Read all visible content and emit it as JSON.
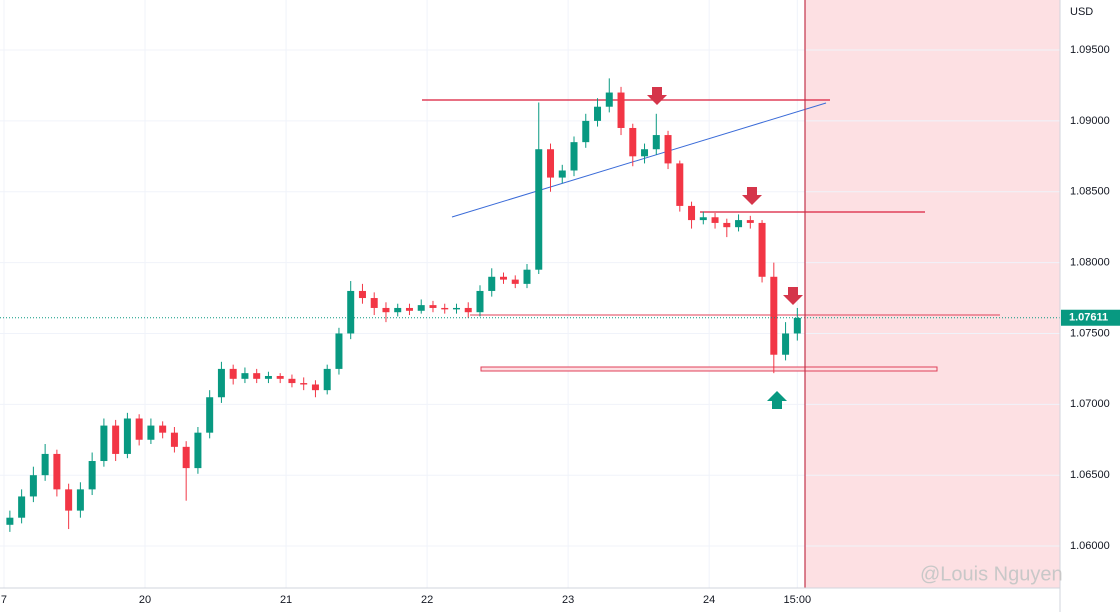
{
  "chart_data": {
    "type": "candlestick",
    "currency": "USD",
    "watermark": "@Louis Nguyen",
    "last_price": 1.07611,
    "up_color": "#089981",
    "down_color": "#f23645",
    "grid": true,
    "xlim": [
      -0.68,
      179.7
    ],
    "ylim": [
      1.05704,
      1.09853
    ],
    "xticks": [
      {
        "value": 0,
        "label": "7"
      },
      {
        "value": 24,
        "label": "20"
      },
      {
        "value": 48,
        "label": "21"
      },
      {
        "value": 72,
        "label": "22"
      },
      {
        "value": 96,
        "label": "23"
      },
      {
        "value": 120,
        "label": "24"
      },
      {
        "value": 135,
        "label": "15:00"
      }
    ],
    "yticks": [
      {
        "value": 1.06,
        "label": "1.06000"
      },
      {
        "value": 1.065,
        "label": "1.06500"
      },
      {
        "value": 1.07,
        "label": "1.07000"
      },
      {
        "value": 1.075,
        "label": "1.07500"
      },
      {
        "value": 1.08,
        "label": "1.08000"
      },
      {
        "value": 1.085,
        "label": "1.08500"
      },
      {
        "value": 1.09,
        "label": "1.09000"
      },
      {
        "value": 1.095,
        "label": "1.09500"
      }
    ],
    "x": [
      1,
      3,
      5,
      7,
      9,
      11,
      13,
      15,
      17,
      19,
      21,
      23,
      25,
      27,
      29,
      31,
      33,
      35,
      37,
      39,
      41,
      43,
      45,
      47,
      49,
      51,
      53,
      55,
      57,
      59,
      61,
      63,
      65,
      67,
      69,
      71,
      73,
      75,
      77,
      79,
      81,
      83,
      85,
      87,
      89,
      91,
      93,
      95,
      97,
      99,
      101,
      103,
      105,
      107,
      109,
      111,
      113,
      115,
      117,
      119,
      121,
      123,
      125,
      127,
      129,
      131,
      133,
      135
    ],
    "open": [
      1.0615,
      1.062,
      1.0635,
      1.065,
      1.0665,
      1.064,
      1.0625,
      1.064,
      1.066,
      1.0685,
      1.0665,
      1.069,
      1.0675,
      1.0685,
      1.068,
      1.067,
      1.0655,
      1.068,
      1.0705,
      1.0725,
      1.0718,
      1.0722,
      1.0718,
      1.072,
      1.0718,
      1.0715,
      1.0714,
      1.071,
      1.0725,
      1.075,
      1.078,
      1.0775,
      1.0768,
      1.0765,
      1.0768,
      1.0766,
      1.077,
      1.0768,
      1.0767,
      1.0768,
      1.0765,
      1.078,
      1.079,
      1.0788,
      1.0785,
      1.0795,
      1.088,
      1.086,
      1.0865,
      1.0885,
      1.09,
      1.091,
      1.092,
      1.0895,
      1.0875,
      1.088,
      1.089,
      1.087,
      1.084,
      1.083,
      1.0832,
      1.0828,
      1.0825,
      1.083,
      1.0828,
      1.079,
      1.0735,
      1.075
    ],
    "high": [
      1.0625,
      1.064,
      1.0656,
      1.0672,
      1.0668,
      1.0644,
      1.0645,
      1.0666,
      1.069,
      1.0689,
      1.0694,
      1.0693,
      1.069,
      1.0688,
      1.0684,
      1.0674,
      1.0684,
      1.071,
      1.073,
      1.0728,
      1.0726,
      1.0725,
      1.0723,
      1.0722,
      1.0721,
      1.0719,
      1.0717,
      1.0728,
      1.0754,
      1.0787,
      1.0785,
      1.0779,
      1.0772,
      1.0771,
      1.0771,
      1.0774,
      1.0773,
      1.0771,
      1.0771,
      1.0772,
      1.0784,
      1.0796,
      1.0793,
      1.0791,
      1.0799,
      1.0913,
      1.0884,
      1.0869,
      1.0889,
      1.0905,
      1.0916,
      1.093,
      1.0924,
      1.0898,
      1.0884,
      1.0905,
      1.0893,
      1.0872,
      1.0843,
      1.0836,
      1.0835,
      1.0831,
      1.0834,
      1.0833,
      1.083,
      1.08,
      1.0758,
      1.0768
    ],
    "low": [
      1.061,
      1.0616,
      1.0631,
      1.0646,
      1.0635,
      1.0612,
      1.062,
      1.0636,
      1.0656,
      1.066,
      1.0662,
      1.0671,
      1.0672,
      1.0676,
      1.0666,
      1.0632,
      1.0651,
      1.0676,
      1.0701,
      1.0714,
      1.0715,
      1.0715,
      1.0715,
      1.0715,
      1.0712,
      1.071,
      1.0705,
      1.0707,
      1.0721,
      1.0746,
      1.0771,
      1.0763,
      1.0758,
      1.0762,
      1.0763,
      1.0764,
      1.0765,
      1.0764,
      1.0764,
      1.0761,
      1.0762,
      1.0776,
      1.0785,
      1.0782,
      1.0782,
      1.0792,
      1.085,
      1.0856,
      1.0861,
      1.0881,
      1.0896,
      1.0906,
      1.089,
      1.0868,
      1.087,
      1.0876,
      1.0866,
      1.0836,
      1.0824,
      1.0827,
      1.0824,
      1.0818,
      1.0822,
      1.0824,
      1.0786,
      1.0722,
      1.0731,
      1.0745
    ],
    "close": [
      1.062,
      1.0635,
      1.065,
      1.0665,
      1.064,
      1.0625,
      1.064,
      1.066,
      1.0685,
      1.0665,
      1.069,
      1.0675,
      1.0685,
      1.068,
      1.067,
      1.0655,
      1.068,
      1.0705,
      1.0725,
      1.0718,
      1.0722,
      1.0718,
      1.072,
      1.0718,
      1.0715,
      1.0714,
      1.071,
      1.0725,
      1.075,
      1.078,
      1.0775,
      1.0768,
      1.0765,
      1.0768,
      1.0766,
      1.077,
      1.0768,
      1.0767,
      1.0768,
      1.0765,
      1.078,
      1.079,
      1.0788,
      1.0785,
      1.0795,
      1.088,
      1.086,
      1.0865,
      1.0885,
      1.09,
      1.091,
      1.092,
      1.0895,
      1.0875,
      1.088,
      1.089,
      1.087,
      1.084,
      1.083,
      1.0832,
      1.0828,
      1.0825,
      1.083,
      1.0828,
      1.079,
      1.0735,
      1.075,
      1.0761
    ]
  }
}
